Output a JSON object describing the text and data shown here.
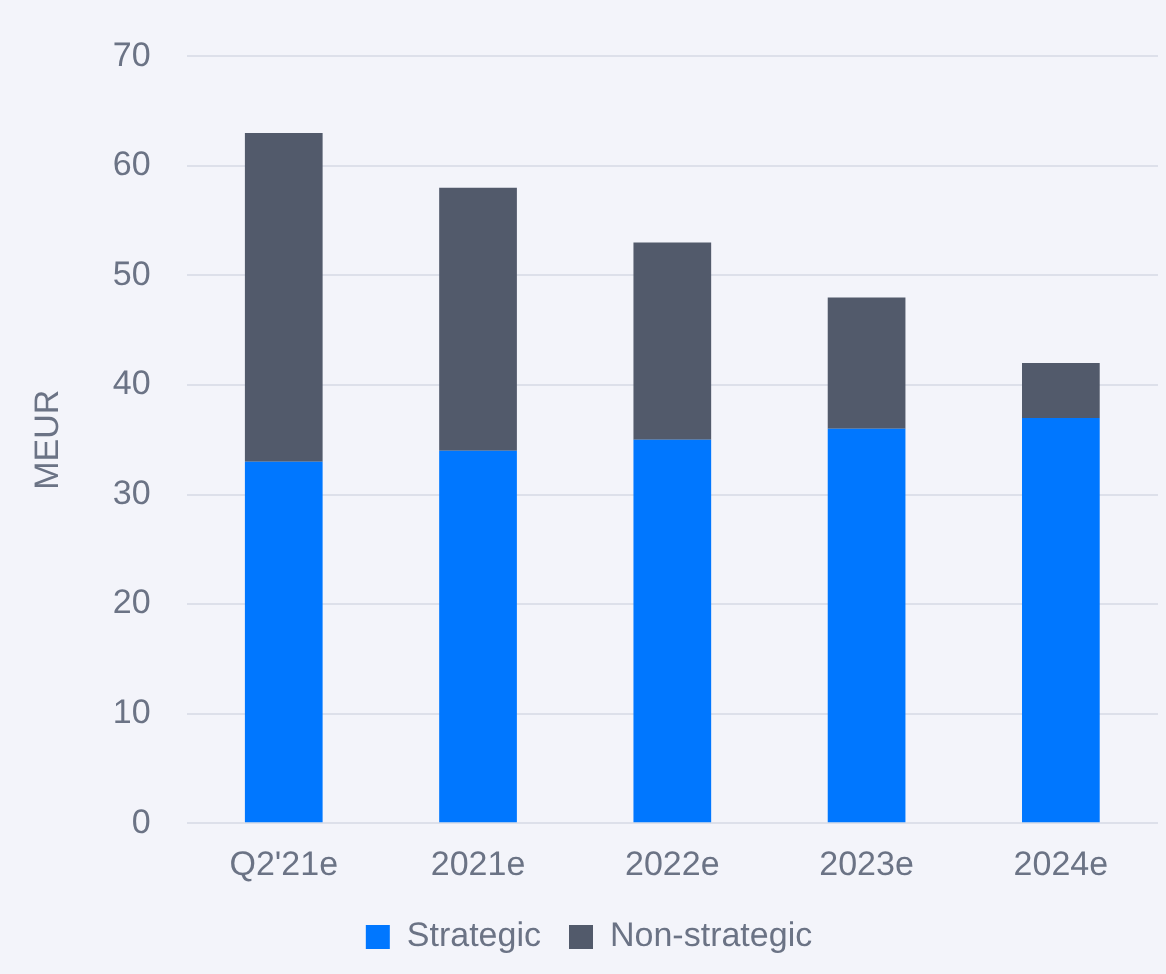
{
  "chart_data": {
    "type": "bar",
    "ylabel": "MEUR",
    "categories": [
      "Q2'21e",
      "2021e",
      "2022e",
      "2023e",
      "2024e"
    ],
    "stacked": true,
    "series": [
      {
        "name": "Strategic",
        "color": "#0077ff",
        "values": [
          33,
          34,
          35,
          36,
          37
        ]
      },
      {
        "name": "Non-strategic",
        "color": "#525a6b",
        "values": [
          30,
          24,
          18,
          12,
          5
        ]
      }
    ],
    "ylim": [
      0,
      70
    ],
    "yticks": [
      0,
      10,
      20,
      30,
      40,
      50,
      60,
      70
    ],
    "grid": "y",
    "legend": "bottom"
  }
}
